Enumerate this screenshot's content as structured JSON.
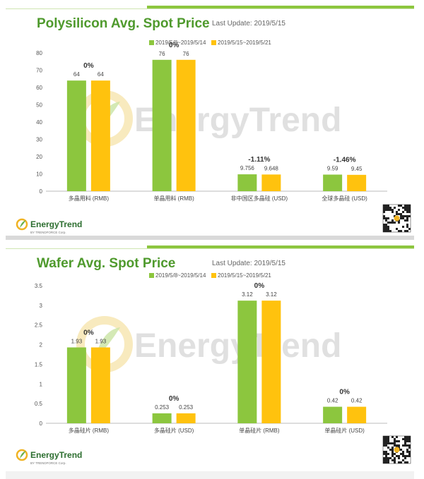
{
  "colors": {
    "series1": "#8cc63e",
    "series2": "#ffc20e",
    "title": "#4f9a2d",
    "accent_line": "#8cc63e",
    "watermark": "#c8c8c8"
  },
  "watermark_text": "EnergyTrend",
  "logo": {
    "name": "EnergyTrend",
    "sub": "BY TRENDFORCE Corp."
  },
  "charts": [
    {
      "title": "Polysilicon Avg. Spot Price",
      "last_update": "Last Update: 2019/5/15"
    },
    {
      "title": "Wafer Avg. Spot Price",
      "last_update": "Last Update: 2019/5/15"
    }
  ],
  "chart_data": [
    {
      "type": "bar",
      "title": "Polysilicon Avg. Spot Price",
      "categories": [
        "多晶用料 (RMB)",
        "单晶用料 (RMB)",
        "非中国区多晶硅 (USD)",
        "全球多晶硅 (USD)"
      ],
      "series": [
        {
          "name": "2019/5/8~2019/5/14",
          "values": [
            64,
            76,
            9.756,
            9.59
          ]
        },
        {
          "name": "2019/5/15~2019/5/21",
          "values": [
            64,
            76,
            9.648,
            9.45
          ]
        }
      ],
      "change_labels": [
        "0%",
        "0%",
        "-1.11%",
        "-1.46%"
      ],
      "ylim": [
        0,
        80
      ],
      "yticks": [
        0,
        10,
        20,
        30,
        40,
        50,
        60,
        70,
        80
      ],
      "legend": "top-center"
    },
    {
      "type": "bar",
      "title": "Wafer Avg. Spot Price",
      "categories": [
        "多晶硅片 (RMB)",
        "多晶硅片 (USD)",
        "单晶硅片 (RMB)",
        "单晶硅片 (USD)"
      ],
      "series": [
        {
          "name": "2019/5/8~2019/5/14",
          "values": [
            1.93,
            0.253,
            3.12,
            0.42
          ]
        },
        {
          "name": "2019/5/15~2019/5/21",
          "values": [
            1.93,
            0.253,
            3.12,
            0.42
          ]
        }
      ],
      "change_labels": [
        "0%",
        "0%",
        "0%",
        "0%"
      ],
      "ylim": [
        0,
        3.5
      ],
      "yticks": [
        0,
        0.5,
        1,
        1.5,
        2,
        2.5,
        3,
        3.5
      ],
      "legend": "top-center"
    }
  ]
}
